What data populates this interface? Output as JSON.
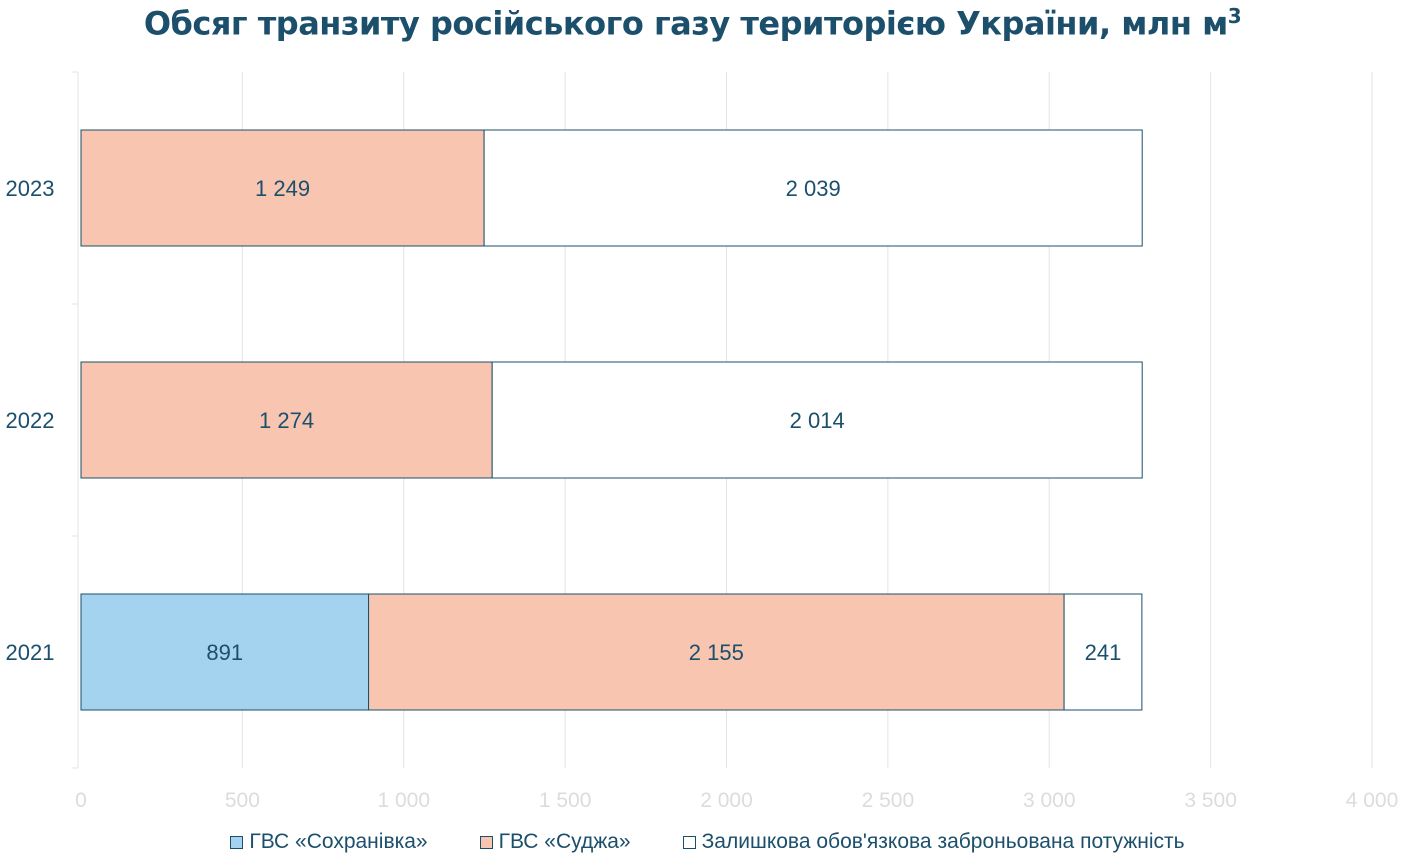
{
  "title": "Обсяг транзиту російського газу територією України, млн м",
  "title_sup": "3",
  "legend": [
    {
      "label": "ГВС «Сохранівка»",
      "color": "#a3d3ee"
    },
    {
      "label": "ГВС «Суджа»",
      "color": "#f7c5b0"
    },
    {
      "label": "Залишкова обов'язкова заброньована потужність",
      "color": "#ffffff"
    }
  ],
  "chart_data": {
    "type": "bar",
    "orientation": "horizontal",
    "stacked": true,
    "categories": [
      "2023",
      "2022",
      "2021"
    ],
    "series": [
      {
        "name": "ГВС «Сохранівка»",
        "values": [
          0,
          0,
          891
        ],
        "labels": [
          "",
          "",
          "891"
        ]
      },
      {
        "name": "ГВС «Суджа»",
        "values": [
          1249,
          1274,
          2155
        ],
        "labels": [
          "1 249",
          "1 274",
          "2 155"
        ]
      },
      {
        "name": "Залишкова обов'язкова заброньована потужність",
        "values": [
          2039,
          2014,
          241
        ],
        "labels": [
          "2 039",
          "2 014",
          "241"
        ]
      }
    ],
    "xlim": [
      0,
      4000
    ],
    "xticks": [
      0,
      500,
      1000,
      1500,
      2000,
      2500,
      3000,
      3500,
      4000
    ],
    "xtick_labels": [
      "0",
      "500",
      "1 000",
      "1 500",
      "2 000",
      "2 500",
      "3 000",
      "3 500",
      "4 000"
    ],
    "grid": true,
    "legend_position": "bottom"
  }
}
